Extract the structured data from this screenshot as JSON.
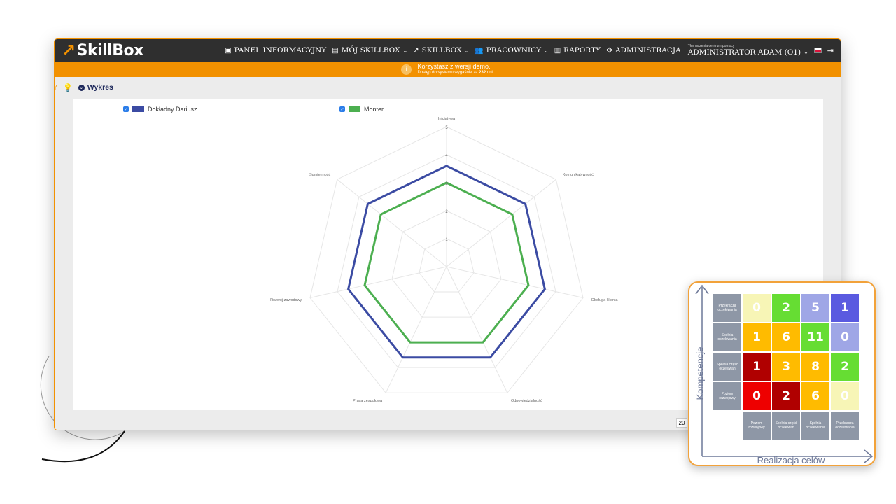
{
  "app": {
    "logo": "SkillBox"
  },
  "nav": {
    "items": [
      {
        "label": "PANEL INFORMACYJNY",
        "icon": "dashboard-icon",
        "dropdown": false
      },
      {
        "label": "MÓJ SKILLBOX",
        "icon": "id-card-icon",
        "dropdown": true
      },
      {
        "label": "SKILLBOX",
        "icon": "skillbox-arrow-icon",
        "dropdown": true
      },
      {
        "label": "PRACOWNICY",
        "icon": "users-icon",
        "dropdown": true
      },
      {
        "label": "RAPORTY",
        "icon": "report-icon",
        "dropdown": false
      },
      {
        "label": "ADMINISTRACJA",
        "icon": "cogs-icon",
        "dropdown": false
      }
    ],
    "help_link": "Tłumaczenia centrum pomocy",
    "user": "ADMINISTRATOR ADAM (O1)"
  },
  "banner": {
    "title": "Korzystasz z wersji demo.",
    "subtitle_prefix": "Dostęp do systemu wygaśnie za ",
    "days": "232",
    "subtitle_suffix": " dni."
  },
  "section": {
    "tab_stub": "Y",
    "title": "Wykres"
  },
  "legend": [
    {
      "label": "Dokładny Dariusz",
      "checked": true,
      "color": "#3b4ba3"
    },
    {
      "label": "Monter",
      "checked": true,
      "color": "#4caf50"
    }
  ],
  "pagination": {
    "page_size": "20"
  },
  "chart_data": {
    "type": "radar",
    "axes": [
      "Inicjatywa",
      "Komunikatywność",
      "Obsługa klienta",
      "Odpowiedzialność",
      "Praca zespołowa",
      "Rozwój zawodowy",
      "Sumienność"
    ],
    "scale": {
      "min": 0,
      "max": 5,
      "ticks": [
        1,
        2,
        3,
        4,
        5
      ]
    },
    "series": [
      {
        "name": "Dokładny Dariusz",
        "color": "#3b4ba3",
        "values": [
          3.6,
          3.6,
          3.6,
          3.6,
          3.6,
          3.6,
          3.6
        ]
      },
      {
        "name": "Monter",
        "color": "#4caf50",
        "values": [
          3.0,
          3.0,
          3.0,
          3.0,
          3.0,
          3.0,
          3.0
        ]
      }
    ]
  },
  "matrix": {
    "y_label": "Kompetencje",
    "x_label": "Realizacja celów",
    "row_labels": [
      "Przekracza oczekiwania",
      "Spełnia oczekiwania",
      "Spełnia część oczekiwań",
      "Poziom rozwojowy"
    ],
    "col_labels": [
      "Poziom rozwojowy",
      "Spełnia część oczekiwań",
      "Spełnia oczekiwania",
      "Przekracza oczekiwania"
    ],
    "cells": [
      [
        {
          "v": "0",
          "c": "#f7f5b6"
        },
        {
          "v": "2",
          "c": "#66dd33"
        },
        {
          "v": "5",
          "c": "#9fa6e6"
        },
        {
          "v": "1",
          "c": "#5a5ae0"
        }
      ],
      [
        {
          "v": "1",
          "c": "#ffbb00"
        },
        {
          "v": "6",
          "c": "#ffbb00"
        },
        {
          "v": "11",
          "c": "#66dd33"
        },
        {
          "v": "0",
          "c": "#9fa6e6"
        }
      ],
      [
        {
          "v": "1",
          "c": "#b00000"
        },
        {
          "v": "3",
          "c": "#ffbb00"
        },
        {
          "v": "8",
          "c": "#ffbb00"
        },
        {
          "v": "2",
          "c": "#66dd33"
        }
      ],
      [
        {
          "v": "0",
          "c": "#ee0000"
        },
        {
          "v": "2",
          "c": "#b00000"
        },
        {
          "v": "6",
          "c": "#ffbb00"
        },
        {
          "v": "0",
          "c": "#f7f5b6"
        }
      ]
    ]
  }
}
